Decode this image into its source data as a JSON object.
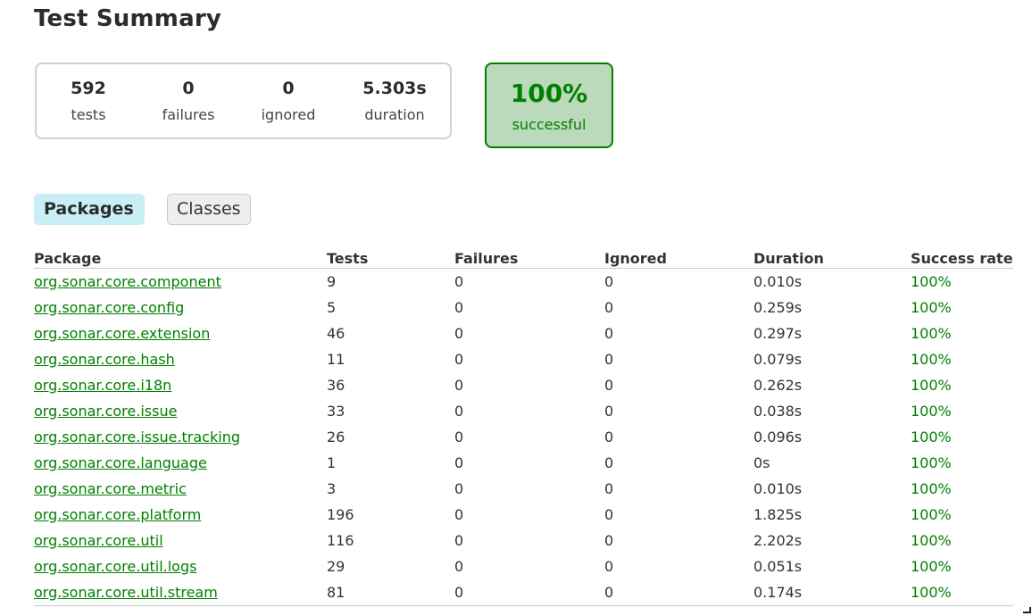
{
  "page": {
    "title": "Test Summary"
  },
  "summary": {
    "tests": {
      "value": "592",
      "label": "tests"
    },
    "failures": {
      "value": "0",
      "label": "failures"
    },
    "ignored": {
      "value": "0",
      "label": "ignored"
    },
    "duration": {
      "value": "5.303s",
      "label": "duration"
    },
    "success": {
      "value": "100%",
      "label": "successful"
    }
  },
  "tabs": {
    "packages": "Packages",
    "classes": "Classes",
    "active": "packages"
  },
  "table": {
    "headers": {
      "package": "Package",
      "tests": "Tests",
      "failures": "Failures",
      "ignored": "Ignored",
      "duration": "Duration",
      "rate": "Success rate"
    },
    "rows": [
      {
        "package": "org.sonar.core.component",
        "tests": "9",
        "failures": "0",
        "ignored": "0",
        "duration": "0.010s",
        "rate": "100%"
      },
      {
        "package": "org.sonar.core.config",
        "tests": "5",
        "failures": "0",
        "ignored": "0",
        "duration": "0.259s",
        "rate": "100%"
      },
      {
        "package": "org.sonar.core.extension",
        "tests": "46",
        "failures": "0",
        "ignored": "0",
        "duration": "0.297s",
        "rate": "100%"
      },
      {
        "package": "org.sonar.core.hash",
        "tests": "11",
        "failures": "0",
        "ignored": "0",
        "duration": "0.079s",
        "rate": "100%"
      },
      {
        "package": "org.sonar.core.i18n",
        "tests": "36",
        "failures": "0",
        "ignored": "0",
        "duration": "0.262s",
        "rate": "100%"
      },
      {
        "package": "org.sonar.core.issue",
        "tests": "33",
        "failures": "0",
        "ignored": "0",
        "duration": "0.038s",
        "rate": "100%"
      },
      {
        "package": "org.sonar.core.issue.tracking",
        "tests": "26",
        "failures": "0",
        "ignored": "0",
        "duration": "0.096s",
        "rate": "100%"
      },
      {
        "package": "org.sonar.core.language",
        "tests": "1",
        "failures": "0",
        "ignored": "0",
        "duration": "0s",
        "rate": "100%"
      },
      {
        "package": "org.sonar.core.metric",
        "tests": "3",
        "failures": "0",
        "ignored": "0",
        "duration": "0.010s",
        "rate": "100%"
      },
      {
        "package": "org.sonar.core.platform",
        "tests": "196",
        "failures": "0",
        "ignored": "0",
        "duration": "1.825s",
        "rate": "100%"
      },
      {
        "package": "org.sonar.core.util",
        "tests": "116",
        "failures": "0",
        "ignored": "0",
        "duration": "2.202s",
        "rate": "100%"
      },
      {
        "package": "org.sonar.core.util.logs",
        "tests": "29",
        "failures": "0",
        "ignored": "0",
        "duration": "0.051s",
        "rate": "100%"
      },
      {
        "package": "org.sonar.core.util.stream",
        "tests": "81",
        "failures": "0",
        "ignored": "0",
        "duration": "0.174s",
        "rate": "100%"
      }
    ]
  },
  "colors": {
    "success_green": "#008000",
    "success_bg": "#bbd9bb",
    "active_tab_bg": "#c8eef6",
    "inactive_tab_bg": "#eeeeee"
  },
  "icons": {
    "resize_grip": "resize-grip-icon"
  }
}
